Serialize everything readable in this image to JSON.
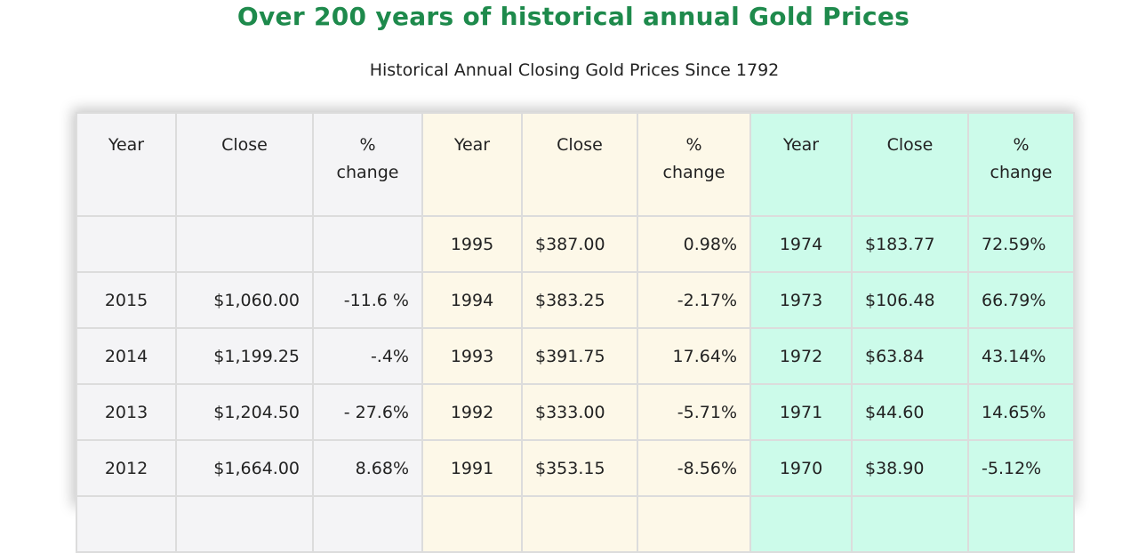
{
  "title": "Over 200 years of historical annual Gold Prices",
  "subtitle": "Historical Annual Closing Gold Prices Since 1792",
  "headers": {
    "year": "Year",
    "close": "Close",
    "pct_line1": "%",
    "pct_line2": "change"
  },
  "rows": [
    {
      "y1": "",
      "c1": "",
      "p1": "",
      "y2": "1995",
      "c2": "$387.00",
      "p2": "0.98%",
      "y3": "1974",
      "c3": "$183.77",
      "p3": "72.59%"
    },
    {
      "y1": "2015",
      "c1": "$1,060.00",
      "p1": "-11.6 %",
      "y2": "1994",
      "c2": "$383.25",
      "p2": "-2.17%",
      "y3": "1973",
      "c3": "$106.48",
      "p3": "66.79%"
    },
    {
      "y1": "2014",
      "c1": "$1,199.25",
      "p1": "-.4%",
      "y2": "1993",
      "c2": "$391.75",
      "p2": "17.64%",
      "y3": "1972",
      "c3": "$63.84",
      "p3": "43.14%"
    },
    {
      "y1": "2013",
      "c1": "$1,204.50",
      "p1": "- 27.6%",
      "y2": "1992",
      "c2": "$333.00",
      "p2": "-5.71%",
      "y3": "1971",
      "c3": "$44.60",
      "p3": "14.65%"
    },
    {
      "y1": "2012",
      "c1": "$1,664.00",
      "p1": "8.68%",
      "y2": "1991",
      "c2": "$353.15",
      "p2": "-8.56%",
      "y3": "1970",
      "c3": "$38.90",
      "p3": "-5.12%"
    },
    {
      "y1": "",
      "c1": "",
      "p1": "",
      "y2": "",
      "c2": "",
      "p2": "",
      "y3": "",
      "c3": "",
      "p3": ""
    }
  ]
}
